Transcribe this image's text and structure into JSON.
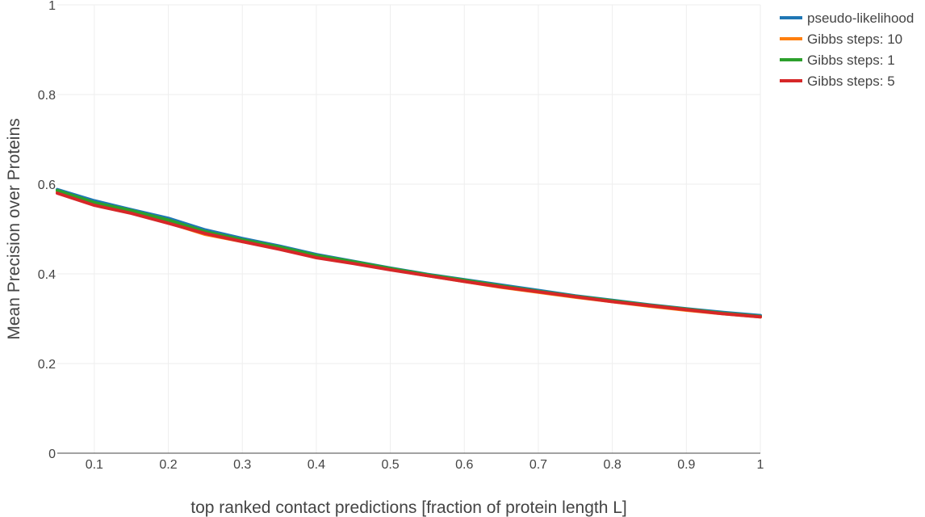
{
  "chart_data": {
    "type": "line",
    "xlabel": "top ranked contact predictions [fraction of protein length L]",
    "ylabel": "Mean Precision over Proteins",
    "xlim": [
      0.05,
      1
    ],
    "ylim": [
      0,
      1
    ],
    "x_ticks": [
      0.1,
      0.2,
      0.3,
      0.4,
      0.5,
      0.6,
      0.7,
      0.8,
      0.9,
      1
    ],
    "x_tick_labels": [
      "0.1",
      "0.2",
      "0.3",
      "0.4",
      "0.5",
      "0.6",
      "0.7",
      "0.8",
      "0.9",
      "1"
    ],
    "y_ticks": [
      0,
      0.2,
      0.4,
      0.6,
      0.8,
      1
    ],
    "y_tick_labels": [
      "0",
      "0.2",
      "0.4",
      "0.6",
      "0.8",
      "1"
    ],
    "grid": true,
    "legend_position": "top-right",
    "x": [
      0.05,
      0.1,
      0.15,
      0.2,
      0.25,
      0.3,
      0.35,
      0.4,
      0.45,
      0.5,
      0.55,
      0.6,
      0.65,
      0.7,
      0.75,
      0.8,
      0.85,
      0.9,
      0.95,
      1
    ],
    "series": [
      {
        "name": "pseudo-likelihood",
        "color": "#1f77b4",
        "values": [
          0.588,
          0.563,
          0.543,
          0.524,
          0.498,
          0.479,
          0.462,
          0.443,
          0.428,
          0.413,
          0.399,
          0.387,
          0.375,
          0.363,
          0.351,
          0.341,
          0.331,
          0.322,
          0.314,
          0.307
        ]
      },
      {
        "name": "Gibbs steps: 10",
        "color": "#ff7f0e",
        "values": [
          0.583,
          0.556,
          0.537,
          0.514,
          0.488,
          0.472,
          0.456,
          0.438,
          0.424,
          0.41,
          0.396,
          0.383,
          0.37,
          0.359,
          0.348,
          0.338,
          0.328,
          0.319,
          0.311,
          0.304
        ]
      },
      {
        "name": "Gibbs steps: 1",
        "color": "#2ca02c",
        "values": [
          0.586,
          0.559,
          0.541,
          0.52,
          0.494,
          0.476,
          0.46,
          0.441,
          0.427,
          0.412,
          0.398,
          0.386,
          0.373,
          0.361,
          0.35,
          0.34,
          0.33,
          0.321,
          0.312,
          0.305
        ]
      },
      {
        "name": "Gibbs steps: 5",
        "color": "#d62728",
        "values": [
          0.58,
          0.553,
          0.535,
          0.513,
          0.49,
          0.472,
          0.455,
          0.436,
          0.423,
          0.409,
          0.396,
          0.383,
          0.371,
          0.36,
          0.349,
          0.338,
          0.329,
          0.32,
          0.311,
          0.304
        ]
      }
    ]
  }
}
